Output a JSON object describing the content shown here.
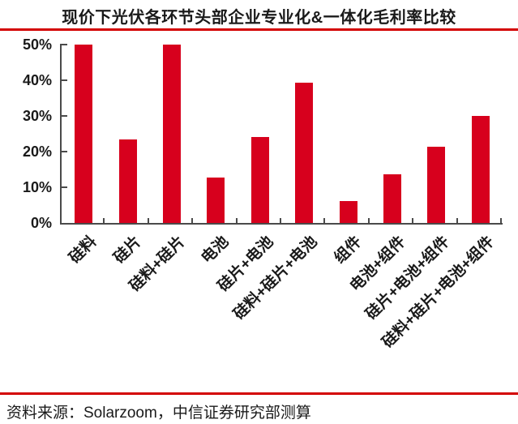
{
  "figure": {
    "title": "现价下光伏各环节头部企业专业化&一体化毛利率比较",
    "source": "资料来源：Solarzoom，中信证券研究部测算"
  },
  "colors": {
    "bar": "#d7001d",
    "rule": "#d30000",
    "axis": "#4a4a4a",
    "text": "#1a1a1a"
  },
  "chart_data": {
    "type": "bar",
    "title": "现价下光伏各环节头部企业专业化&一体化毛利率比较",
    "categories": [
      "硅料",
      "硅片",
      "硅料+硅片",
      "电池",
      "硅片+电池",
      "硅料+硅片+电池",
      "组件",
      "电池+组件",
      "硅片+电池+组件",
      "硅料+硅片+电池+组件"
    ],
    "values": [
      50,
      23.5,
      50,
      12.7,
      24,
      39.4,
      6.1,
      13.6,
      21.3,
      30
    ],
    "unit": "%",
    "xlabel": "",
    "ylabel": "",
    "ylim": [
      0,
      50
    ],
    "yticks": [
      "0%",
      "10%",
      "20%",
      "30%",
      "40%",
      "50%"
    ],
    "grid": false,
    "legend": "none",
    "bar_color": "#d7001d"
  }
}
